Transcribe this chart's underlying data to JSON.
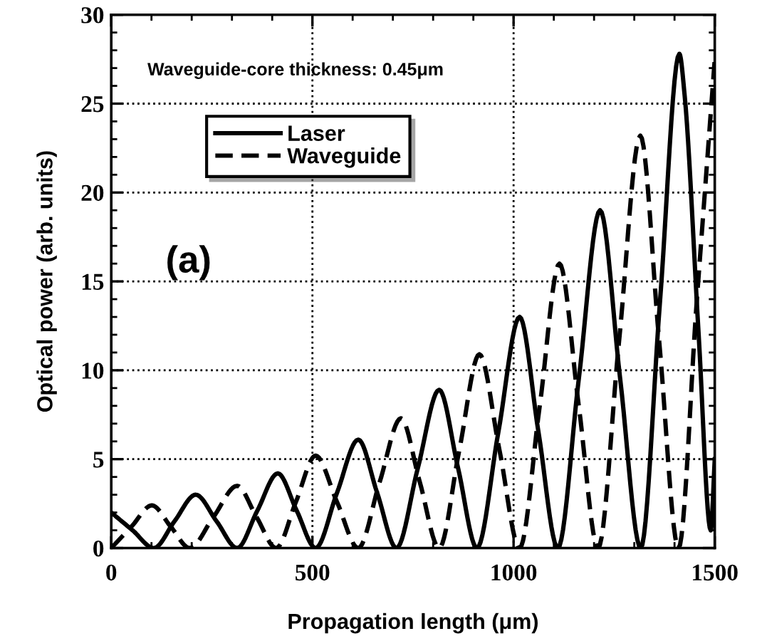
{
  "chart_data": {
    "type": "line",
    "xlabel": "Propagation length (μm)",
    "ylabel": "Optical power (arb. units)",
    "xlim": [
      0,
      1500
    ],
    "ylim": [
      0,
      30
    ],
    "xticks": [
      0,
      500,
      1000,
      1500
    ],
    "yticks": [
      0,
      5,
      10,
      15,
      20,
      25,
      30
    ],
    "grid": true,
    "legend": "top left",
    "marker": "none",
    "annotations": [
      "Waveguide-core thickness: 0.45μm",
      "(a)"
    ],
    "series": [
      {
        "name": "Laser",
        "color": "#000000",
        "line_style": "solid",
        "x": [
          0,
          53,
          106,
          157,
          210,
          262,
          313,
          363,
          414,
          461,
          508,
          561,
          614,
          661,
          709,
          762,
          815,
          862,
          909,
          962,
          1015,
          1062,
          1110,
          1162,
          1215,
          1265,
          1316,
          1364,
          1412,
          1425,
          1460,
          1490,
          1500
        ],
        "values": [
          2.0,
          1.0,
          0,
          1.5,
          3.0,
          1.5,
          0,
          2.1,
          4.2,
          2.1,
          0,
          3.1,
          6.1,
          3.1,
          0,
          4.5,
          8.9,
          4.5,
          0,
          6.5,
          13.0,
          6.5,
          0,
          9.5,
          19.0,
          9.5,
          0,
          13.9,
          27.8,
          25.5,
          12,
          1,
          5
        ]
      },
      {
        "name": "Waveguide",
        "color": "#000000",
        "line_style": "dashed",
        "x": [
          0,
          50,
          101,
          148,
          195,
          254,
          313,
          361,
          410,
          459,
          508,
          561,
          614,
          667,
          720,
          767,
          815,
          865,
          915,
          965,
          1015,
          1065,
          1114,
          1162,
          1210,
          1262,
          1315,
          1362,
          1410,
          1455,
          1500
        ],
        "values": [
          0,
          1.2,
          2.4,
          1.2,
          0,
          1.75,
          3.5,
          1.75,
          0,
          2.6,
          5.2,
          2.6,
          0,
          3.7,
          7.3,
          3.7,
          0,
          5.5,
          10.9,
          5.5,
          0,
          8,
          16,
          8,
          0,
          11.6,
          23.2,
          11.6,
          0,
          13.8,
          27.5
        ]
      }
    ]
  }
}
